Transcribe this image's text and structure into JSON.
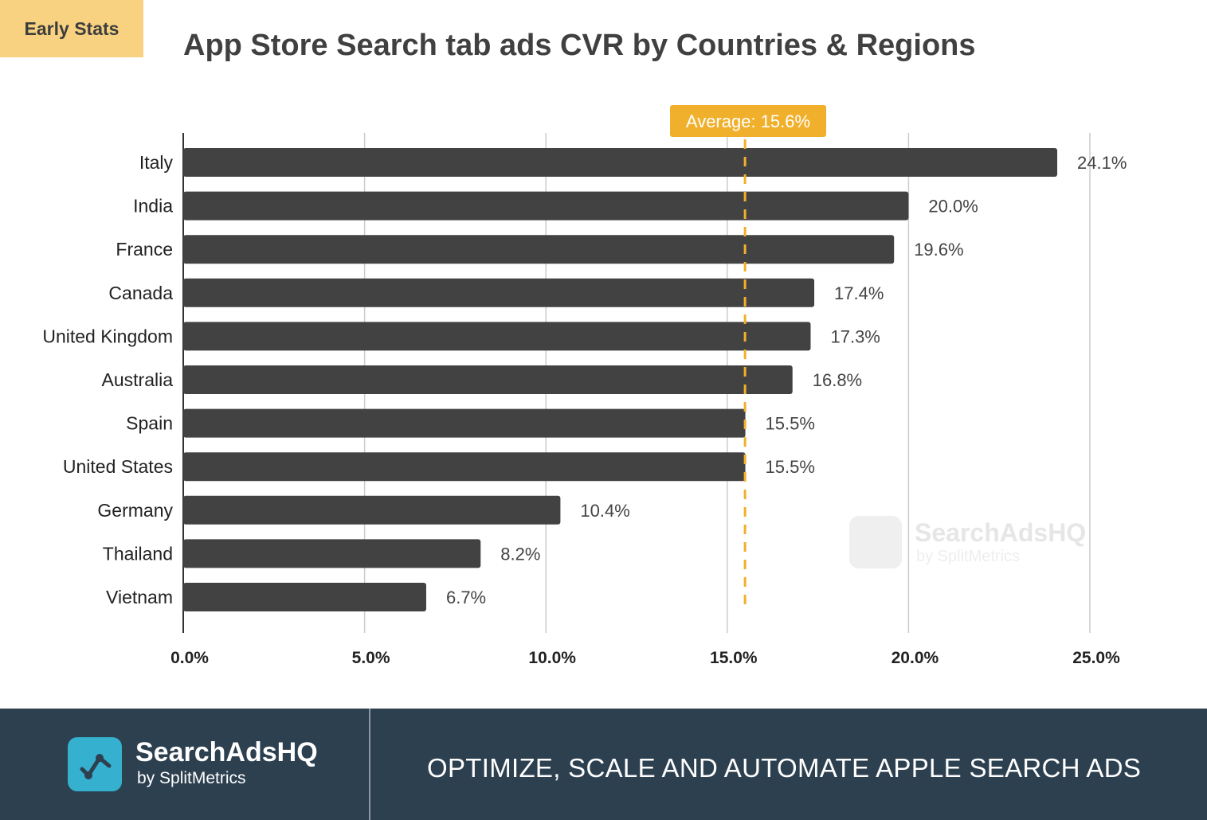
{
  "badge": "Early Stats",
  "chart_data": {
    "type": "bar",
    "orientation": "horizontal",
    "title": "App Store Search tab ads CVR by Countries & Regions",
    "categories": [
      "Italy",
      "India",
      "France",
      "Canada",
      "United Kingdom",
      "Australia",
      "Spain",
      "United States",
      "Germany",
      "Thailand",
      "Vietnam"
    ],
    "values": [
      24.1,
      20.0,
      19.6,
      17.4,
      17.3,
      16.8,
      15.5,
      15.5,
      10.4,
      8.2,
      6.7
    ],
    "value_labels": [
      "24.1%",
      "20.0%",
      "19.6%",
      "17.4%",
      "17.3%",
      "16.8%",
      "15.5%",
      "15.5%",
      "10.4%",
      "8.2%",
      "6.7%"
    ],
    "xlim": [
      0,
      25
    ],
    "xticks": [
      0,
      5,
      10,
      15,
      20,
      25
    ],
    "xtick_labels": [
      "0.0%",
      "5.0%",
      "10.0%",
      "15.0%",
      "20.0%",
      "25.0%"
    ],
    "grid": true,
    "average": {
      "value": 15.6,
      "label": "Average: 15.6%"
    },
    "colors": {
      "bar": "#424242",
      "average": "#f0b02c",
      "grid": "#cccccc"
    },
    "watermark": {
      "brand": "SearchAdsHQ",
      "sub": "by SplitMetrics"
    }
  },
  "footer": {
    "brand": "SearchAdsHQ",
    "sub": "by SplitMetrics",
    "slogan": "OPTIMIZE, SCALE AND AUTOMATE APPLE SEARCH ADS"
  }
}
